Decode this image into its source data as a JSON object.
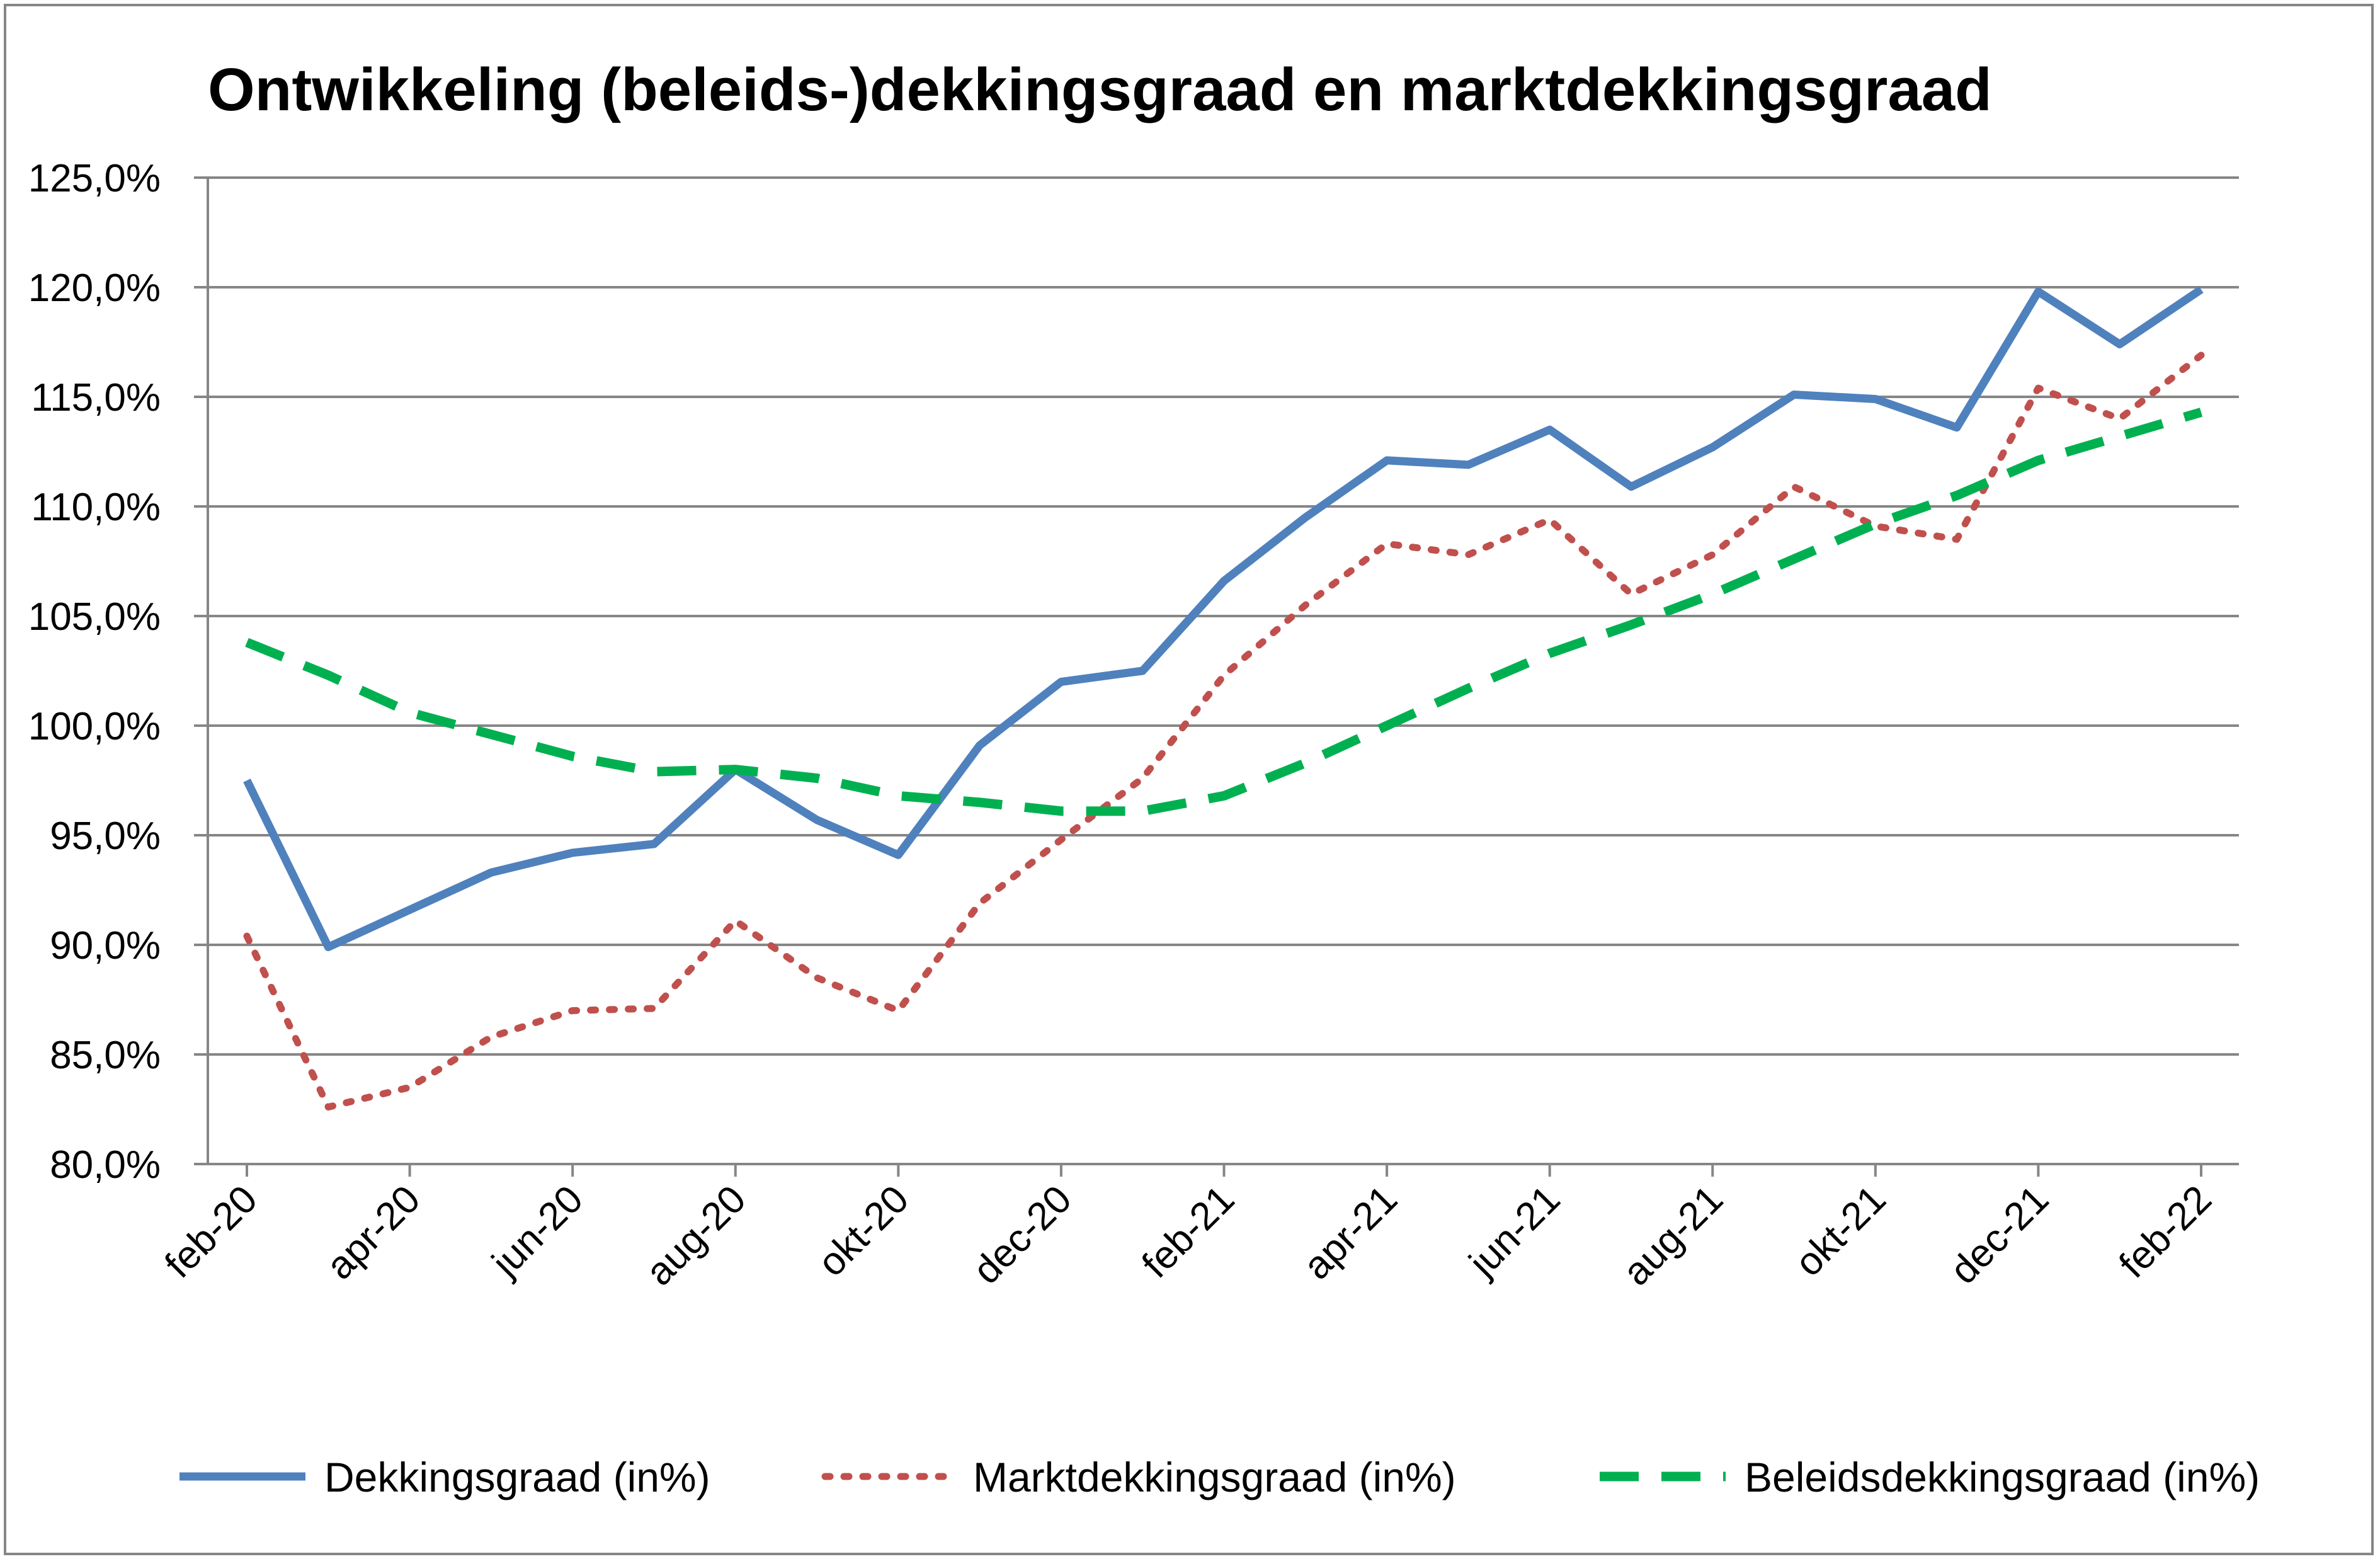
{
  "chart_data": {
    "type": "line",
    "title": "Ontwikkeling (beleids-)dekkingsgraad en marktdekkingsgraad",
    "xlabel": "",
    "ylabel": "",
    "ylim": [
      80,
      125
    ],
    "y_ticks": [
      "80,0%",
      "85,0%",
      "90,0%",
      "95,0%",
      "100,0%",
      "105,0%",
      "110,0%",
      "115,0%",
      "120,0%",
      "125,0%"
    ],
    "x": [
      "feb-20",
      "mrt-20",
      "apr-20",
      "mei-20",
      "jun-20",
      "jul-20",
      "aug-20",
      "sep-20",
      "okt-20",
      "nov-20",
      "dec-20",
      "jan-21",
      "feb-21",
      "mrt-21",
      "apr-21",
      "mei-21",
      "jun-21",
      "jul-21",
      "aug-21",
      "sep-21",
      "okt-21",
      "nov-21",
      "dec-21",
      "jan-22",
      "feb-22"
    ],
    "x_tick_labels": [
      "feb-20",
      "apr-20",
      "jun-20",
      "aug-20",
      "okt-20",
      "dec-20",
      "feb-21",
      "apr-21",
      "jun-21",
      "aug-21",
      "okt-21",
      "dec-21",
      "feb-22"
    ],
    "grid": "horizontal",
    "legend_position": "bottom",
    "series": [
      {
        "name": "Dekkingsgraad (in%)",
        "color": "#4F81BD",
        "style": "solid",
        "values": [
          97.5,
          89.9,
          91.6,
          93.3,
          94.2,
          94.6,
          98.0,
          95.7,
          94.1,
          99.1,
          102.0,
          102.5,
          106.6,
          109.5,
          112.1,
          111.9,
          113.5,
          110.9,
          112.7,
          115.1,
          114.9,
          113.6,
          119.8,
          117.4,
          119.9
        ]
      },
      {
        "name": "Marktdekkingsgraad (in%)",
        "color": "#C0504D",
        "style": "dotted",
        "values": [
          90.4,
          82.6,
          83.5,
          85.8,
          87.0,
          87.1,
          91.1,
          88.5,
          87.0,
          91.9,
          94.8,
          97.6,
          102.3,
          105.5,
          108.3,
          107.8,
          109.4,
          106.0,
          107.8,
          110.9,
          109.1,
          108.5,
          115.4,
          114.0,
          116.9
        ]
      },
      {
        "name": "Beleidsdekkingsgraad (in%)",
        "color": "#00B050",
        "style": "dashed",
        "values": [
          103.8,
          102.3,
          100.6,
          99.6,
          98.6,
          97.9,
          98.0,
          97.6,
          96.8,
          96.5,
          96.1,
          96.1,
          96.8,
          98.3,
          100.0,
          101.7,
          103.3,
          104.6,
          106.0,
          107.6,
          109.2,
          110.5,
          112.1,
          113.2,
          114.3
        ]
      }
    ]
  }
}
